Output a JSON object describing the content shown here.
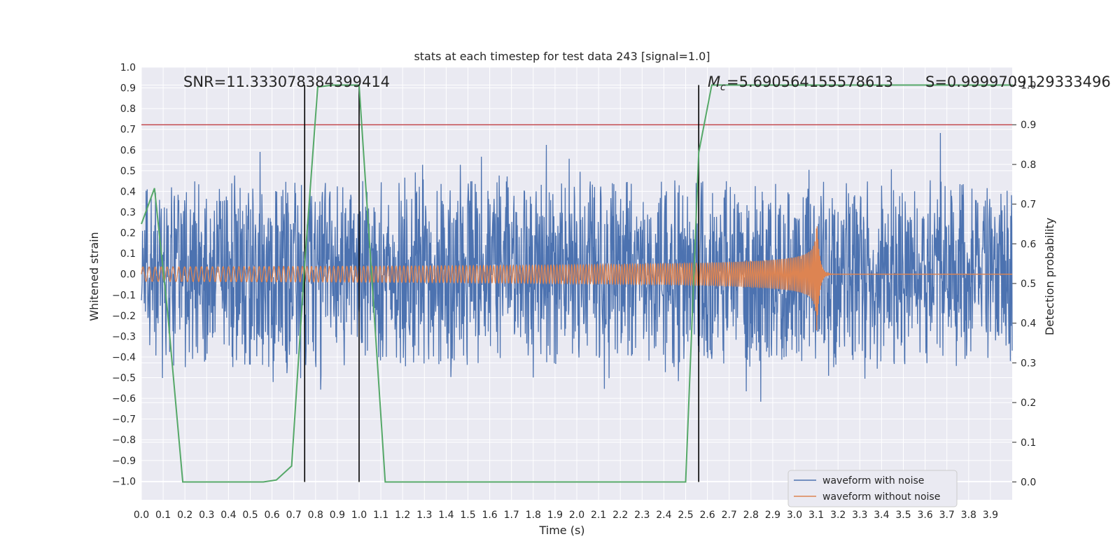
{
  "chart_data": {
    "type": "line",
    "title": "stats at each timestep for test data 243 [signal=1.0]",
    "xlabel": "Time (s)",
    "ylabel": "Whitened strain",
    "ylabel_right": "Detection probability",
    "xlim": [
      0,
      4.0
    ],
    "ylim": [
      -1.09,
      1.0
    ],
    "ylim_right": [
      -0.045,
      1.045
    ],
    "x_ticks": [
      "0.0",
      "0.1",
      "0.2",
      "0.3",
      "0.4",
      "0.5",
      "0.6",
      "0.7",
      "0.8",
      "0.9",
      "1.0",
      "1.1",
      "1.2",
      "1.3",
      "1.4",
      "1.5",
      "1.6",
      "1.7",
      "1.8",
      "1.9",
      "2.0",
      "2.1",
      "2.2",
      "2.3",
      "2.4",
      "2.5",
      "2.6",
      "2.7",
      "2.8",
      "2.9",
      "3.0",
      "3.1",
      "3.2",
      "3.3",
      "3.4",
      "3.5",
      "3.6",
      "3.7",
      "3.8",
      "3.9"
    ],
    "y_ticks": [
      "1.0",
      "0.9",
      "0.8",
      "0.7",
      "0.6",
      "0.5",
      "0.4",
      "0.3",
      "0.2",
      "0.1",
      "0.0",
      "−0.1",
      "−0.2",
      "−0.3",
      "−0.4",
      "−0.5",
      "−0.6",
      "−0.7",
      "−0.8",
      "−0.9",
      "−1.0"
    ],
    "y_right_ticks": [
      "1.0",
      "0.9",
      "0.8",
      "0.7",
      "0.6",
      "0.5",
      "0.4",
      "0.3",
      "0.2",
      "0.1",
      "0.0"
    ],
    "grid": true,
    "legend_position": "bottom-right",
    "series": [
      {
        "name": "waveform with noise",
        "color": "#4c72b0",
        "amplitude_envelope": 0.5,
        "x_range": [
          0,
          4.0
        ]
      },
      {
        "name": "waveform without noise",
        "color": "#dd8452",
        "chirp_start_amplitude": 0.035,
        "chirp_peak_amplitude": 0.33,
        "chirp_start_freq_hz": 35,
        "chirp_end_freq_hz": 160,
        "merger_time": 3.1
      }
    ],
    "detection_probability": {
      "color": "#55a868",
      "axis": "right",
      "x": [
        0.0,
        0.06,
        0.12,
        0.19,
        0.25,
        0.31,
        0.38,
        0.44,
        0.5,
        0.56,
        0.62,
        0.69,
        0.75,
        0.81,
        0.88,
        0.94,
        1.0,
        1.06,
        1.12,
        1.19,
        1.25,
        1.31,
        1.38,
        1.44,
        1.5,
        1.56,
        1.62,
        1.69,
        1.75,
        1.81,
        1.88,
        1.94,
        2.0,
        2.06,
        2.12,
        2.19,
        2.25,
        2.31,
        2.38,
        2.44,
        2.5,
        2.56,
        2.62,
        2.69,
        2.75,
        2.81,
        2.88,
        2.94,
        3.0,
        3.06,
        3.12,
        3.19,
        3.25,
        3.31,
        3.38,
        3.44,
        3.5,
        3.56,
        3.62,
        3.69,
        3.75,
        3.81,
        3.88,
        3.94,
        4.0
      ],
      "y": [
        0.65,
        0.74,
        0.43,
        0.0,
        0.0,
        0.0,
        0.0,
        0.0,
        0.0,
        0.0,
        0.005,
        0.04,
        0.55,
        0.995,
        1.0,
        1.0,
        1.0,
        0.5,
        0.0,
        0.0,
        0.0,
        0.0,
        0.0,
        0.0,
        0.0,
        0.0,
        0.0,
        0.0,
        0.0,
        0.0,
        0.0,
        0.0,
        0.0,
        0.0,
        0.0,
        0.0,
        0.0,
        0.0,
        0.0,
        0.0,
        0.0,
        0.83,
        1.0,
        1.0,
        1.0,
        1.0,
        1.0,
        1.0,
        1.0,
        1.0,
        1.0,
        1.0,
        1.0,
        1.0,
        1.0,
        1.0,
        1.0,
        1.0,
        1.0,
        1.0,
        1.0,
        1.0,
        1.0,
        1.0,
        1.0
      ]
    },
    "threshold_line": {
      "y_right": 0.9,
      "color": "#c44e52"
    },
    "vertical_lines": [
      0.75,
      1.0,
      2.56
    ],
    "annotations": {
      "snr": "SNR=11.333078384399414",
      "mc": "=5.690564155578613",
      "mc_symbol": "M",
      "mc_subscript": "c",
      "s": "S=0.9999709129333496"
    }
  }
}
